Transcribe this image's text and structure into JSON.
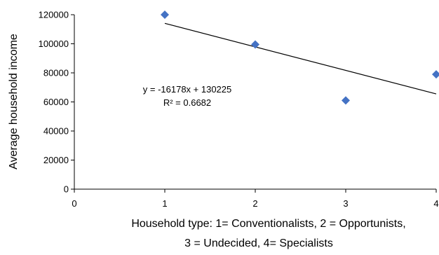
{
  "chart_data": {
    "type": "scatter",
    "title": "",
    "xlabel_line1": "Household type: 1= Conventionalists, 2 = Opportunists,",
    "xlabel_line2": "3 = Undecided, 4= Specialists",
    "ylabel": "Average household income",
    "xlim": [
      0,
      4
    ],
    "ylim": [
      0,
      120000
    ],
    "x_ticks": [
      0,
      1,
      2,
      3,
      4
    ],
    "y_ticks": [
      0,
      20000,
      40000,
      60000,
      80000,
      100000,
      120000
    ],
    "grid": false,
    "legend": "none",
    "series": [
      {
        "points": [
          {
            "x": 1,
            "y": 120000
          },
          {
            "x": 2,
            "y": 99500
          },
          {
            "x": 3,
            "y": 61000
          },
          {
            "x": 4,
            "y": 79000
          }
        ],
        "marker": "diamond",
        "color": "#4472C4"
      }
    ],
    "trendline": {
      "type": "linear",
      "slope": -16178,
      "intercept": 130225,
      "x_range": [
        1,
        4
      ],
      "color": "#000000",
      "equation": "y = -16178x + 130225",
      "r_squared": "R² = 0.6682"
    }
  }
}
